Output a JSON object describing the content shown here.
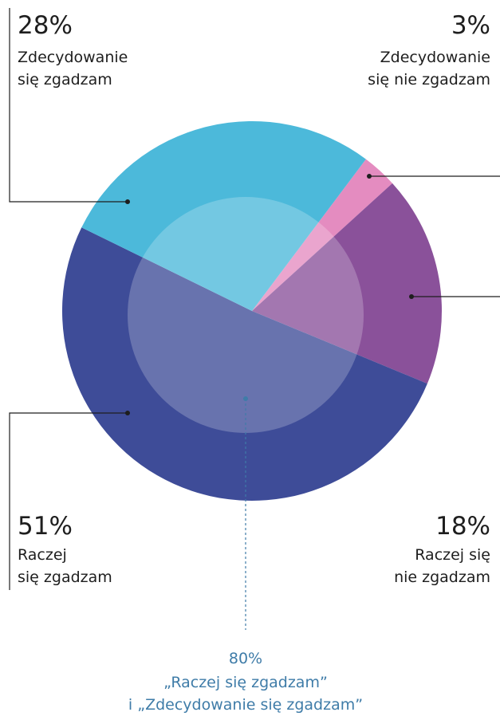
{
  "chart_data": {
    "type": "pie",
    "categories": [
      "Zdecydowanie\nsię nie zgadzam",
      "Raczej się\nnie zgadzam",
      "Raczej\nsię zgadzam",
      "Zdecydowanie\nsię zgadzam"
    ],
    "values": [
      3,
      18,
      51,
      28
    ],
    "value_labels": [
      "3%",
      "18%",
      "51%",
      "28%"
    ],
    "colors": [
      "#e48cc0",
      "#8a519a",
      "#3e4c98",
      "#4cb9da"
    ],
    "annotation": {
      "value": 80,
      "label": "80%",
      "text": "„Raczej się zgadzam”\ni „Zdecydowanie się zgadzam”"
    }
  }
}
